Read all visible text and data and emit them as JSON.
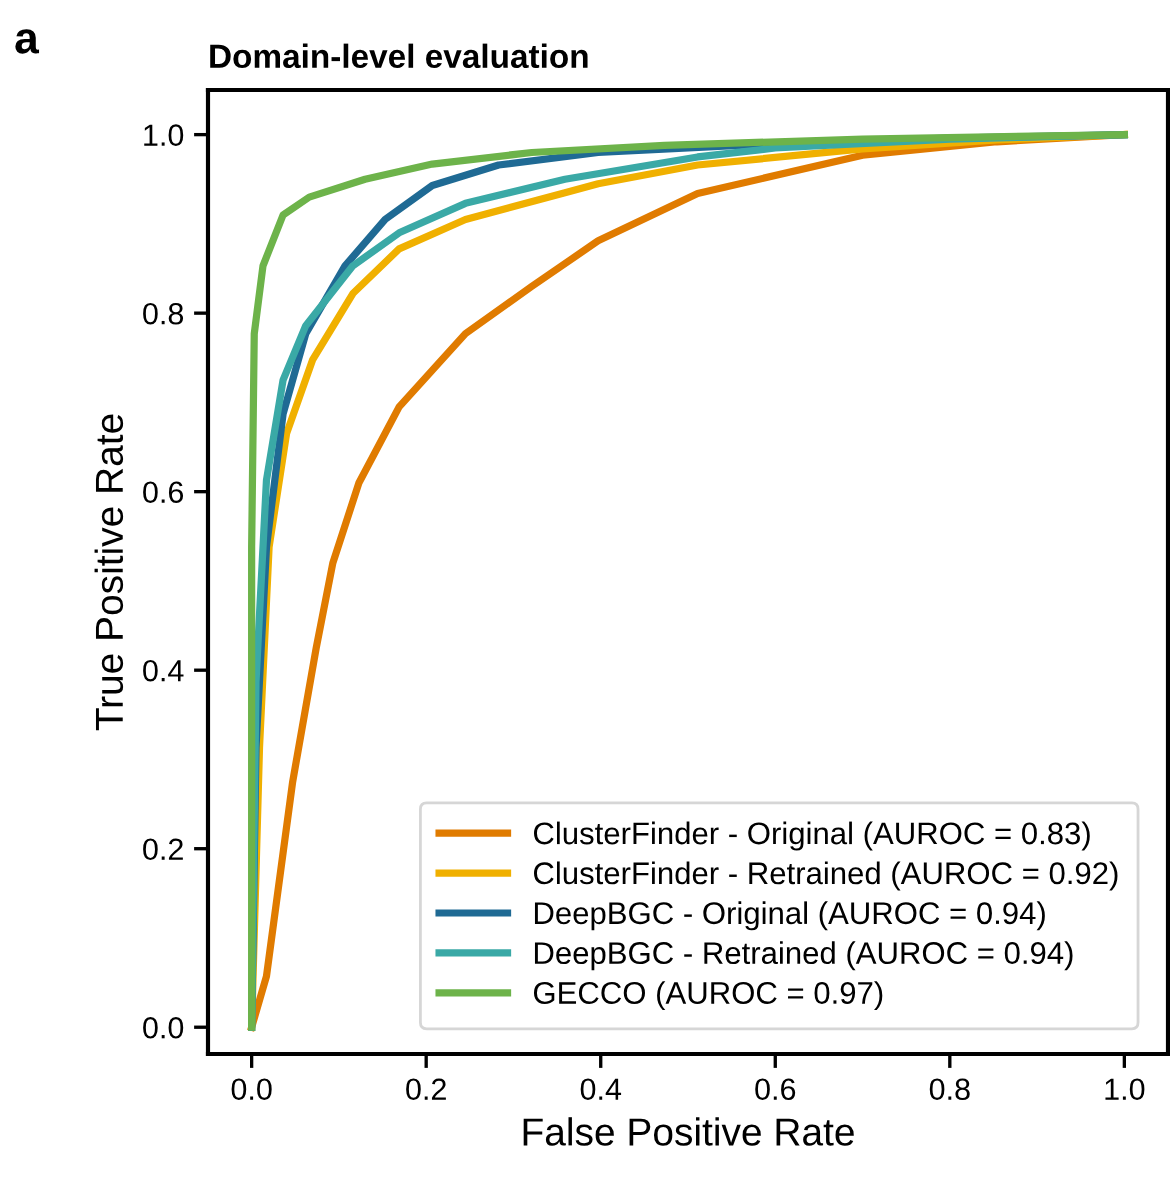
{
  "chart_data": {
    "type": "line",
    "title": "Domain-level evaluation",
    "xlabel": "False Positive Rate",
    "ylabel": "True Positive Rate",
    "annotations": [
      "a"
    ],
    "xlim": [
      -0.05,
      1.05
    ],
    "ylim": [
      -0.03,
      1.05
    ],
    "xticks": [
      {
        "value": 0,
        "label": "0.0"
      },
      0.2,
      0.4,
      0.6,
      0.8,
      {
        "value": 1,
        "label": "1.0"
      }
    ],
    "yticks": [
      {
        "value": 0,
        "label": "0.0"
      },
      0.2,
      0.4,
      0.6,
      0.8,
      {
        "value": 1,
        "label": "1.0"
      }
    ],
    "grid": false,
    "legend": "bottom right",
    "marker": "none",
    "line_style": "solid",
    "series": [
      {
        "name": "ClusterFinder - Original (AUROC = 0.83)",
        "color": "#e07b00",
        "x": [
          0,
          0.017,
          0.047,
          0.074,
          0.093,
          0.123,
          0.169,
          0.245,
          0.321,
          0.397,
          0.511,
          0.7,
          0.854,
          1.0
        ],
        "values": [
          0,
          0.057,
          0.275,
          0.425,
          0.52,
          0.61,
          0.695,
          0.777,
          0.83,
          0.881,
          0.934,
          0.977,
          0.992,
          1.0
        ]
      },
      {
        "name": "ClusterFinder - Retrained (AUROC = 0.92)",
        "color": "#f0b000",
        "x": [
          0,
          0.009,
          0.02,
          0.04,
          0.07,
          0.116,
          0.169,
          0.245,
          0.359,
          0.397,
          0.511,
          0.7,
          0.854,
          1.0
        ],
        "values": [
          0,
          0.313,
          0.538,
          0.665,
          0.748,
          0.822,
          0.872,
          0.905,
          0.935,
          0.945,
          0.966,
          0.984,
          0.994,
          1.0
        ]
      },
      {
        "name": "DeepBGC - Original (AUROC = 0.94)",
        "color": "#1f6a94",
        "x": [
          0,
          0.005,
          0.017,
          0.036,
          0.062,
          0.107,
          0.153,
          0.207,
          0.283,
          0.397,
          0.6,
          0.8,
          1.0
        ],
        "values": [
          0,
          0.313,
          0.538,
          0.687,
          0.777,
          0.853,
          0.905,
          0.943,
          0.966,
          0.98,
          0.99,
          0.996,
          1.0
        ]
      },
      {
        "name": "DeepBGC - Retrained (AUROC = 0.94)",
        "color": "#3aa9a6",
        "x": [
          0,
          0.005,
          0.017,
          0.036,
          0.062,
          0.116,
          0.169,
          0.245,
          0.359,
          0.511,
          0.6,
          0.8,
          1.0
        ],
        "values": [
          0,
          0.387,
          0.613,
          0.725,
          0.786,
          0.853,
          0.89,
          0.923,
          0.95,
          0.975,
          0.985,
          0.995,
          1.0
        ]
      },
      {
        "name": "GECCO (AUROC = 0.97)",
        "color": "#6db34a",
        "x": [
          0,
          0.0,
          0.003,
          0.013,
          0.036,
          0.066,
          0.13,
          0.207,
          0.321,
          0.473,
          0.7,
          1.0
        ],
        "values": [
          0,
          0.538,
          0.777,
          0.853,
          0.91,
          0.93,
          0.95,
          0.967,
          0.98,
          0.988,
          0.995,
          1.0
        ]
      }
    ]
  }
}
